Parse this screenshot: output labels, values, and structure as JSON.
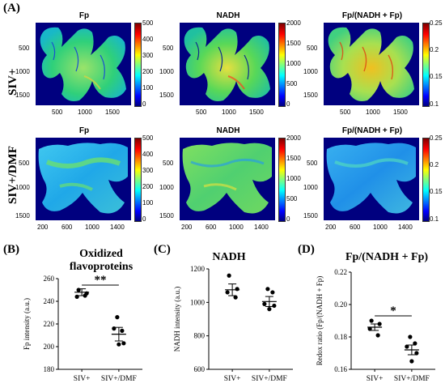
{
  "panels": {
    "A": "(A)",
    "B": "(B)",
    "C": "(C)",
    "D": "(D)"
  },
  "maps": {
    "titles": [
      "Fp",
      "NADH",
      "Fp/(NADH + Fp)"
    ],
    "rows": [
      {
        "label": "SIV+",
        "y_ticks": [
          "500",
          "1000",
          "1500"
        ],
        "x_ticks": [
          "500",
          "1000",
          "1500"
        ],
        "colorbars": [
          [
            "500",
            "400",
            "300",
            "200",
            "100",
            "0"
          ],
          [
            "2000",
            "1500",
            "1000",
            "500",
            "0"
          ],
          [
            "0.25",
            "0.2",
            "0.15",
            "0.1"
          ]
        ]
      },
      {
        "label": "SIV+/DMF",
        "y_ticks": [
          "500",
          "1000",
          "1500"
        ],
        "x_ticks": [
          "200",
          "600",
          "1000",
          "1400"
        ],
        "colorbars": [
          [
            "500",
            "400",
            "300",
            "200",
            "100",
            "0"
          ],
          [
            "2000",
            "1500",
            "1000",
            "500",
            "0"
          ],
          [
            "0.25",
            "0.2",
            "0.15",
            "0.1"
          ]
        ]
      }
    ]
  },
  "chart_data": [
    {
      "type": "scatter",
      "title": "Oxidized flavoproteins",
      "ylabel": "Fp intensity (a.u.)",
      "categories": [
        "SIV+",
        "SIV+/DMF"
      ],
      "ylim": [
        180,
        260
      ],
      "yticks": [
        180,
        200,
        220,
        240,
        260
      ],
      "points": [
        [
          250,
          247,
          244,
          245
        ],
        [
          226,
          214,
          216,
          203,
          202
        ]
      ],
      "mean": [
        248,
        211
      ],
      "sem": [
        3,
        6
      ],
      "significance": "**"
    },
    {
      "type": "scatter",
      "title": "NADH",
      "ylabel": "NADH intensity (a.u.)",
      "categories": [
        "SIV+",
        "SIV+/DMF"
      ],
      "ylim": [
        600,
        1200
      ],
      "yticks": [
        600,
        800,
        1000,
        1200
      ],
      "points": [
        [
          1160,
          1080,
          1060,
          1030
        ],
        [
          1080,
          1060,
          990,
          980,
          960
        ]
      ],
      "mean": [
        1075,
        1005
      ],
      "sem": [
        35,
        30
      ],
      "significance": ""
    },
    {
      "type": "scatter",
      "title": "Fp/(NADH + Fp)",
      "ylabel": "Redox ratio (Fp/(NADH + Fp)",
      "categories": [
        "SIV+",
        "SIV+/DMF"
      ],
      "ylim": [
        0.16,
        0.22
      ],
      "yticks": [
        0.16,
        0.18,
        0.2,
        0.22
      ],
      "ytick_labels": [
        "0.16",
        "0.18",
        "0.20",
        "0.22"
      ],
      "points": [
        [
          0.19,
          0.188,
          0.185,
          0.181
        ],
        [
          0.18,
          0.176,
          0.174,
          0.17,
          0.165
        ]
      ],
      "mean": [
        0.186,
        0.172
      ],
      "sem": [
        0.002,
        0.003
      ],
      "significance": "*"
    }
  ]
}
